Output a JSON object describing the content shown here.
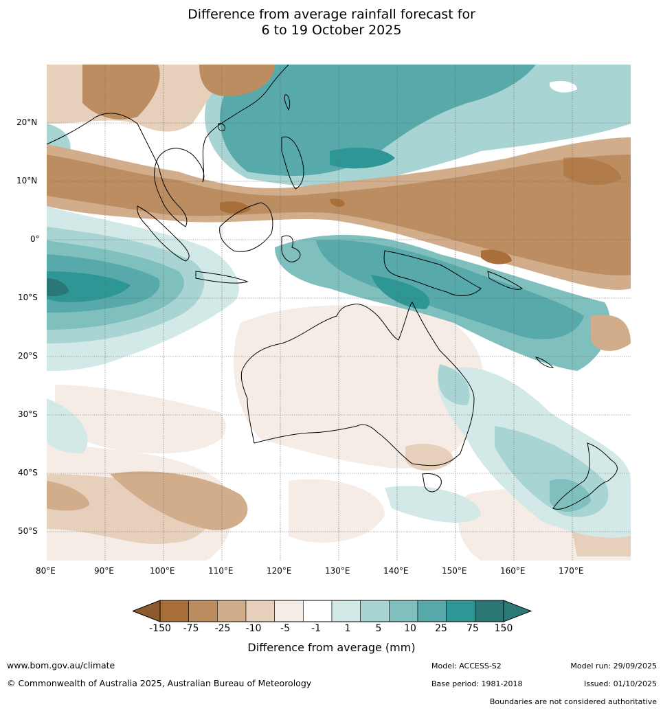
{
  "title": {
    "line1": "Difference from average rainfall forecast for",
    "line2": "6 to 19 October 2025"
  },
  "map": {
    "lat_labels": [
      "20°N",
      "10°N",
      "0°",
      "10°S",
      "20°S",
      "30°S",
      "40°S",
      "50°S"
    ],
    "lon_labels": [
      "80°E",
      "90°E",
      "100°E",
      "110°E",
      "120°E",
      "130°E",
      "140°E",
      "150°E",
      "160°E",
      "170°E"
    ]
  },
  "legend": {
    "title": "Difference from average (mm)",
    "ticks": [
      "-150",
      "-75",
      "-25",
      "-10",
      "-5",
      "-1",
      "1",
      "5",
      "10",
      "25",
      "75",
      "150"
    ],
    "colors": [
      "#a86f3b",
      "#bd8d62",
      "#d2ad8b",
      "#e6cfbb",
      "#f5ece6",
      "#ffffff",
      "#d3e9e7",
      "#a8d5d3",
      "#7fbfbe",
      "#58a9aa",
      "#2e9796",
      "#2a7775"
    ],
    "extend_low_color": "#8c5a2e",
    "extend_high_color": "#2b7a77"
  },
  "footer": {
    "website": "www.bom.gov.au/climate",
    "copyright": "© Commonwealth of Australia 2025, Australian Bureau of Meteorology",
    "model": "Model: ACCESS-S2",
    "base_period": "Base period: 1981-2018",
    "model_run": "Model run: 29/09/2025",
    "issued": "Issued: 01/10/2025",
    "disclaimer": "Boundaries are not considered authoritative"
  }
}
